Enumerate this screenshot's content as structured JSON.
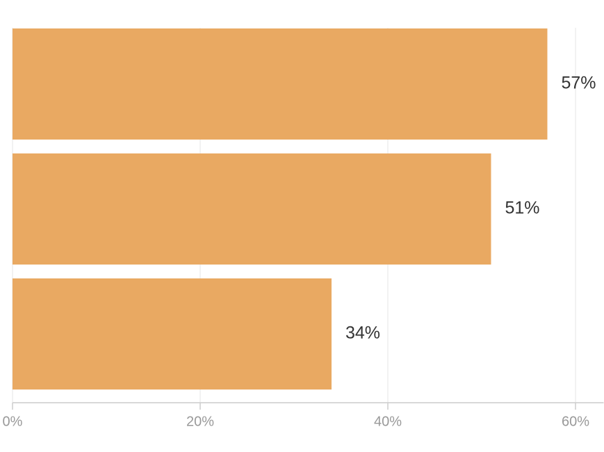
{
  "chart_data": {
    "type": "bar",
    "orientation": "horizontal",
    "categories": [
      null,
      null,
      null
    ],
    "values": [
      57,
      51,
      34
    ],
    "value_labels": [
      "57%",
      "51%",
      "34%"
    ],
    "color": "#e9a962",
    "xlim": [
      0,
      63
    ],
    "xticks": [
      {
        "value": 0,
        "label": "0%"
      },
      {
        "value": 20,
        "label": "20%"
      },
      {
        "value": 40,
        "label": "40%"
      },
      {
        "value": 60,
        "label": "60%"
      }
    ],
    "grid": true
  }
}
